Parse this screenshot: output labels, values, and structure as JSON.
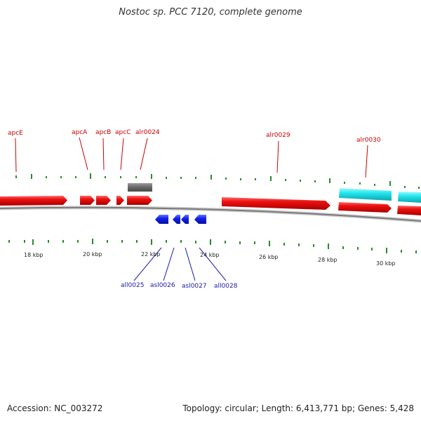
{
  "title": "Nostoc sp. PCC 7120, complete genome",
  "footer": {
    "accession": "Accession: NC_003272",
    "summary": "Topology: circular; Length: 6,413,771 bp; Genes: 5,428"
  },
  "colors": {
    "forward_gene": "#ee1111",
    "forward_label": "#cc0000",
    "reverse_gene": "#1122ee",
    "reverse_label": "#1a1aaa",
    "rna_gene": "#22e6ee",
    "other_feature": "#666666",
    "tick": "#2a8a2a",
    "backbone": "#7a7a7a"
  },
  "scale_labels": [
    "18 kbp",
    "20 kbp",
    "22 kbp",
    "24 kbp",
    "26 kbp",
    "28 kbp",
    "30 kbp"
  ],
  "forward_gene_labels": [
    "apcE",
    "apcA",
    "apcB",
    "apcC",
    "alr0024",
    "alr0029",
    "alr0030"
  ],
  "reverse_gene_labels": [
    "all0025",
    "asl0026",
    "asl0027",
    "all0028"
  ]
}
